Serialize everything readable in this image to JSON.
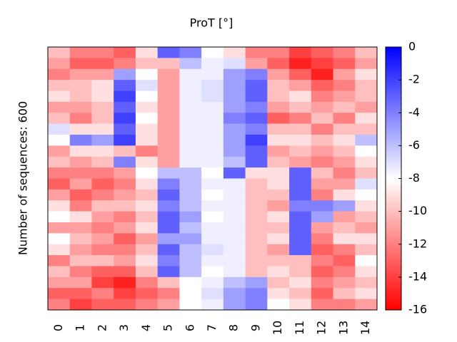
{
  "chart_data": {
    "type": "heatmap",
    "title": "ProT [°]",
    "y_label": "Number of sequences: 600",
    "categories": [
      "0",
      "1",
      "2",
      "3",
      "4",
      "5",
      "6",
      "7",
      "8",
      "9",
      "10",
      "11",
      "12",
      "13",
      "14"
    ],
    "values": [
      [
        -10,
        -11,
        -12,
        -10,
        -9,
        -11,
        -10,
        -7,
        -8,
        -11,
        -10,
        -12,
        -13,
        -11,
        -9,
        -8,
        -11,
        -8,
        -9,
        -12,
        -10,
        -11,
        -13,
        -12
      ],
      [
        -12,
        -13,
        -11,
        -10,
        -10,
        -11,
        -12,
        -9,
        -4,
        -9,
        -11,
        -12,
        -11,
        -13,
        -12,
        -9,
        -11,
        -10,
        -11,
        -10,
        -12,
        -11,
        -13,
        -14
      ],
      [
        -12,
        -13,
        -11,
        -9,
        -9,
        -10,
        -10,
        -9,
        -5,
        -9,
        -10,
        -12,
        -13,
        -12,
        -10,
        -11,
        -12,
        -11,
        -12,
        -10,
        -13,
        -14,
        -12,
        -13
      ],
      [
        -13,
        -12,
        -5,
        -3,
        -2,
        -3,
        -2,
        -3,
        -2,
        -10,
        -4,
        -11,
        -12,
        -11,
        -10,
        -12,
        -11,
        -13,
        -12,
        -11,
        -13,
        -15,
        -14,
        -13
      ],
      [
        -9,
        -10,
        -8,
        -7,
        -8,
        -9,
        -8,
        -9,
        -9,
        -12,
        -9,
        -8,
        -9,
        -10,
        -9,
        -10,
        -9,
        -11,
        -10,
        -9,
        -10,
        -12,
        -13,
        -12
      ],
      [
        -3,
        -10,
        -11,
        -11,
        -11,
        -11,
        -11,
        -11,
        -11,
        -11,
        -11,
        -6,
        -4,
        -3,
        -4,
        -3,
        -3,
        -5,
        -3,
        -4,
        -3,
        -10,
        -12,
        -11
      ],
      [
        -4,
        -6,
        -7.5,
        -7.5,
        -7.5,
        -7.5,
        -7.5,
        -7.5,
        -7.5,
        -7.5,
        -7.5,
        -6,
        -6,
        -6,
        -6,
        -5,
        -6,
        -5,
        -6,
        -6,
        -6,
        -8,
        -8,
        -8
      ],
      [
        -8,
        -7.5,
        -7.5,
        -7,
        -7,
        -7.5,
        -7.5,
        -7.5,
        -7.5,
        -7.5,
        -7.5,
        -8,
        -7.5,
        -8,
        -7.5,
        -8,
        -7.5,
        -7.5,
        -7,
        -7.5,
        -8,
        -7.5,
        -7,
        -7.5
      ],
      [
        -9,
        -7,
        -5,
        -5,
        -5,
        -5,
        -4,
        -5,
        -5,
        -5,
        -6,
        -3,
        -7.5,
        -7.5,
        -7.5,
        -7.5,
        -7.5,
        -7.5,
        -7.5,
        -7.5,
        -7.5,
        -6,
        -5,
        -5
      ],
      [
        -12,
        -11,
        -4,
        -3,
        -3,
        -4,
        -3,
        -4,
        -2,
        -3,
        -3,
        -9,
        -10,
        -10,
        -10,
        -10,
        -10,
        -10,
        -10,
        -10,
        -10,
        -5,
        -4,
        -4
      ],
      [
        -12,
        -13,
        -11,
        -10,
        -10,
        -11,
        -13,
        -10,
        -9,
        -11,
        -10,
        -9,
        -9,
        -10,
        -11,
        -9,
        -10,
        -9,
        -11,
        -10,
        -9,
        -10,
        -9,
        -8
      ],
      [
        -14,
        -15,
        -13,
        -11,
        -9,
        -10,
        -12,
        -10,
        -9,
        -10,
        -11,
        -3,
        -3,
        -3,
        -4,
        -3,
        -3,
        -3,
        -3,
        -10,
        -10,
        -9,
        -10,
        -9
      ],
      [
        -13,
        -14,
        -15,
        -13,
        -12,
        -11,
        -10,
        -12,
        -10,
        -11,
        -12,
        -10,
        -11,
        -12,
        -4,
        -5,
        -11,
        -12,
        -13,
        -12,
        -13,
        -12,
        -13,
        -12
      ],
      [
        -12,
        -13,
        -11,
        -12,
        -11,
        -10,
        -12,
        -10,
        -9,
        -10,
        -11,
        -12,
        -11,
        -9,
        -5,
        -11,
        -10,
        -9,
        -12,
        -13,
        -12,
        -11,
        -10,
        -12
      ],
      [
        -10,
        -11,
        -9,
        -10,
        -10,
        -11,
        -9,
        -10,
        -6,
        -8,
        -9,
        -10,
        -7,
        -8,
        -9,
        -10,
        -11,
        -9,
        -10,
        -8,
        -9,
        -10,
        -9,
        -11
      ]
    ],
    "zlim": [
      -16,
      0
    ],
    "zticks": [
      0,
      -2,
      -4,
      -6,
      -8,
      -10,
      -12,
      -14,
      -16
    ],
    "colormap": [
      "#ff0000",
      "#ffffff",
      "#0000ff"
    ]
  }
}
